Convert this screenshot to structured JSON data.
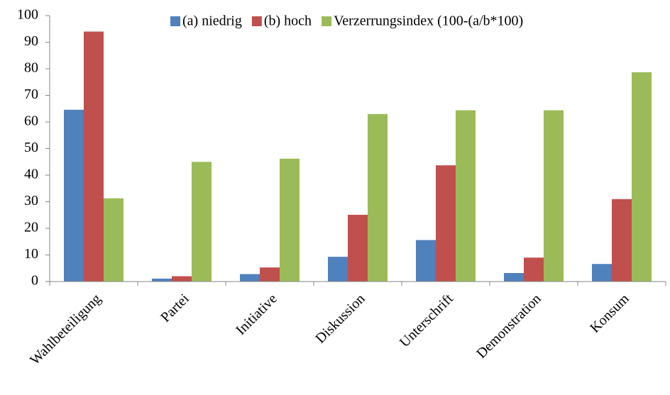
{
  "chart_data": {
    "type": "bar",
    "categories": [
      "Wahlbeteiligung",
      "Partei",
      "Initiative",
      "Diskussion",
      "Unterschrift",
      "Demonstration",
      "Konsum"
    ],
    "series": [
      {
        "name": "(a) niedrig",
        "color": "#4f81bd",
        "values": [
          64.6,
          1.1,
          2.8,
          9.3,
          15.6,
          3.2,
          6.6
        ]
      },
      {
        "name": "(b) hoch",
        "color": "#c0504d",
        "values": [
          94,
          2,
          5.3,
          25.1,
          43.7,
          9,
          31
        ]
      },
      {
        "name": "Verzerrungsindex (100-(a/b*100)",
        "color": "#9bbb59",
        "values": [
          31.3,
          45,
          46.2,
          63,
          64.4,
          64.4,
          78.7
        ]
      }
    ],
    "ylim": [
      0,
      100
    ],
    "yticks": [
      0,
      10,
      20,
      30,
      40,
      50,
      60,
      70,
      80,
      90,
      100
    ],
    "grid": false,
    "legend": "top"
  }
}
